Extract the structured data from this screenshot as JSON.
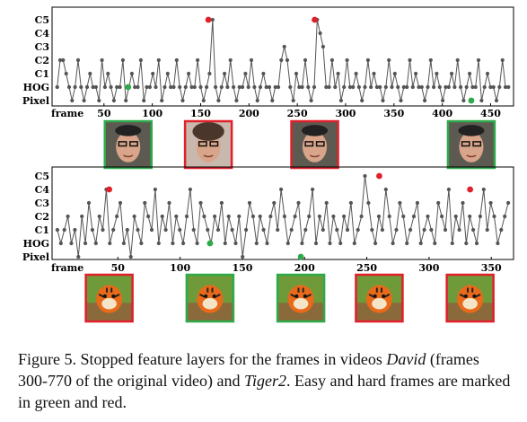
{
  "chart_data": [
    {
      "type": "line",
      "title": "",
      "xlabel": "frame",
      "ylabel": "",
      "y_categories": [
        "Pixel",
        "HOG",
        "C1",
        "C2",
        "C3",
        "C4",
        "C5"
      ],
      "x_ticks": [
        50,
        100,
        150,
        200,
        250,
        300,
        350,
        400,
        450
      ],
      "xlim": [
        0,
        470
      ],
      "colors": {
        "line": "#555555",
        "easy": "#2eaa4a",
        "hard": "#e0202a"
      },
      "easy_frames": [
        {
          "x": 75,
          "y": "HOG"
        },
        {
          "x": 430,
          "y": "Pixel"
        }
      ],
      "hard_frames": [
        {
          "x": 158,
          "y": "C5"
        },
        {
          "x": 268,
          "y": "C5"
        }
      ],
      "thumbnails": [
        {
          "x": 75,
          "kind": "easy",
          "image": "face"
        },
        {
          "x": 158,
          "kind": "hard",
          "image": "face-curly"
        },
        {
          "x": 268,
          "kind": "hard",
          "image": "face"
        },
        {
          "x": 430,
          "kind": "easy",
          "image": "face"
        }
      ],
      "series": [
        {
          "values": [
            "HOG",
            "C2",
            "C2",
            "C1",
            "HOG",
            "Pixel",
            "HOG",
            "C2",
            "HOG",
            "Pixel",
            "HOG",
            "C1",
            "HOG",
            "HOG",
            "Pixel",
            "C2",
            "HOG",
            "C1",
            "HOG",
            "Pixel",
            "HOG",
            "HOG",
            "C2",
            "Pixel",
            "HOG",
            "C1",
            "HOG",
            "HOG",
            "C2",
            "Pixel",
            "HOG",
            "HOG",
            "C1",
            "HOG",
            "C2",
            "Pixel",
            "HOG",
            "C1",
            "HOG",
            "HOG",
            "C2",
            "HOG",
            "Pixel",
            "HOG",
            "C1",
            "HOG",
            "HOG",
            "C2",
            "HOG",
            "Pixel",
            "HOG",
            "C1",
            "C5",
            "HOG",
            "Pixel",
            "HOG",
            "C1",
            "HOG",
            "C2",
            "HOG",
            "Pixel",
            "HOG",
            "HOG",
            "C1",
            "HOG",
            "C2",
            "HOG",
            "Pixel",
            "HOG",
            "C1",
            "HOG",
            "HOG",
            "Pixel",
            "HOG",
            "HOG",
            "C2",
            "C3",
            "C2",
            "HOG",
            "Pixel",
            "C1",
            "HOG",
            "HOG",
            "C2",
            "HOG",
            "Pixel",
            "HOG",
            "C5",
            "C4",
            "C3",
            "HOG",
            "HOG",
            "C2",
            "HOG",
            "C1",
            "Pixel",
            "HOG",
            "C2",
            "HOG",
            "HOG",
            "C1",
            "HOG",
            "Pixel",
            "HOG",
            "C2",
            "HOG",
            "C1",
            "HOG",
            "HOG",
            "Pixel",
            "HOG",
            "C2",
            "HOG",
            "C1",
            "HOG",
            "Pixel",
            "HOG",
            "HOG",
            "C2",
            "HOG",
            "C1",
            "HOG",
            "HOG",
            "Pixel",
            "HOG",
            "C2",
            "HOG",
            "C1",
            "HOG",
            "Pixel",
            "HOG",
            "HOG",
            "C1",
            "HOG",
            "C2",
            "HOG",
            "Pixel",
            "HOG",
            "C1",
            "HOG",
            "HOG",
            "C2",
            "Pixel",
            "HOG",
            "C1",
            "HOG",
            "HOG",
            "Pixel",
            "HOG",
            "C2",
            "HOG",
            "HOG"
          ]
        }
      ]
    },
    {
      "type": "line",
      "title": "",
      "xlabel": "frame",
      "ylabel": "",
      "y_categories": [
        "Pixel",
        "HOG",
        "C1",
        "C2",
        "C3",
        "C4",
        "C5"
      ],
      "x_ticks": [
        50,
        100,
        150,
        200,
        250,
        300,
        350
      ],
      "xlim": [
        0,
        365
      ],
      "colors": {
        "line": "#555555",
        "easy": "#2eaa4a",
        "hard": "#e0202a"
      },
      "easy_frames": [
        {
          "x": 124,
          "y": "HOG"
        },
        {
          "x": 197,
          "y": "Pixel"
        }
      ],
      "hard_frames": [
        {
          "x": 43,
          "y": "C4"
        },
        {
          "x": 260,
          "y": "C5"
        },
        {
          "x": 333,
          "y": "C4"
        }
      ],
      "thumbnails": [
        {
          "x": 43,
          "kind": "hard",
          "image": "tiger"
        },
        {
          "x": 124,
          "kind": "easy",
          "image": "tiger"
        },
        {
          "x": 197,
          "kind": "easy",
          "image": "tiger"
        },
        {
          "x": 260,
          "kind": "hard",
          "image": "tiger"
        },
        {
          "x": 333,
          "kind": "hard",
          "image": "tiger"
        }
      ],
      "series": [
        {
          "values": [
            "C1",
            "HOG",
            "C1",
            "C2",
            "HOG",
            "C1",
            "Pixel",
            "C2",
            "HOG",
            "C3",
            "C1",
            "HOG",
            "C2",
            "C1",
            "C4",
            "HOG",
            "C1",
            "C2",
            "C3",
            "HOG",
            "C1",
            "Pixel",
            "C2",
            "C1",
            "HOG",
            "C3",
            "C2",
            "C1",
            "C4",
            "HOG",
            "C2",
            "C1",
            "C3",
            "HOG",
            "C2",
            "C1",
            "HOG",
            "C2",
            "C4",
            "C1",
            "HOG",
            "C3",
            "C2",
            "C1",
            "HOG",
            "C2",
            "C1",
            "C3",
            "HOG",
            "C2",
            "C1",
            "HOG",
            "C2",
            "Pixel",
            "C1",
            "C3",
            "C2",
            "HOG",
            "C2",
            "C1",
            "HOG",
            "C2",
            "C3",
            "C1",
            "C4",
            "C2",
            "HOG",
            "C1",
            "C2",
            "C3",
            "HOG",
            "C1",
            "C2",
            "C4",
            "HOG",
            "C2",
            "C1",
            "C3",
            "HOG",
            "C2",
            "C1",
            "HOG",
            "C2",
            "C1",
            "C3",
            "HOG",
            "C1",
            "C2",
            "C5",
            "C3",
            "C1",
            "HOG",
            "C2",
            "C1",
            "C4",
            "C2",
            "HOG",
            "C1",
            "C3",
            "C2",
            "HOG",
            "C1",
            "C2",
            "C3",
            "HOG",
            "C1",
            "C2",
            "C1",
            "HOG",
            "C3",
            "C2",
            "C1",
            "C4",
            "HOG",
            "C2",
            "C1",
            "C3",
            "HOG",
            "C2",
            "C1",
            "HOG",
            "C2",
            "C4",
            "C1",
            "C3",
            "C2",
            "HOG",
            "C1",
            "C2",
            "C3"
          ]
        }
      ]
    }
  ],
  "caption": {
    "p1": "Figure 5. Stopped feature layers for the frames in videos ",
    "v1": "David",
    "p2": " (frames 300-770 of the original video) and ",
    "v2": "Tiger2",
    "p3": ". Easy and hard frames are marked in green and red."
  }
}
